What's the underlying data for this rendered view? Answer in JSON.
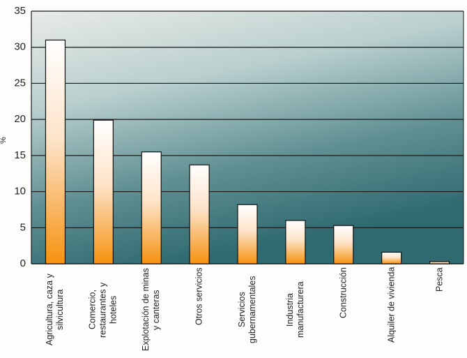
{
  "chart_data": {
    "type": "bar",
    "y_label": "%",
    "categories": [
      "Agricultura, caza y silvicultura",
      "Comercio, restaurantes y hoteles",
      "Explotación de minas y canteras",
      "Otros servicios",
      "Servicios gubernamentales",
      "Industria manufacturera",
      "Construcción",
      "Alquiler de vivienda",
      "Pesca"
    ],
    "values": [
      31,
      19.9,
      15.5,
      13.7,
      8.2,
      6,
      5.3,
      1.6,
      0.3
    ],
    "ylim": [
      0,
      35
    ],
    "yticks": [
      0,
      5,
      10,
      15,
      20,
      25,
      30,
      35
    ],
    "grid": true
  }
}
